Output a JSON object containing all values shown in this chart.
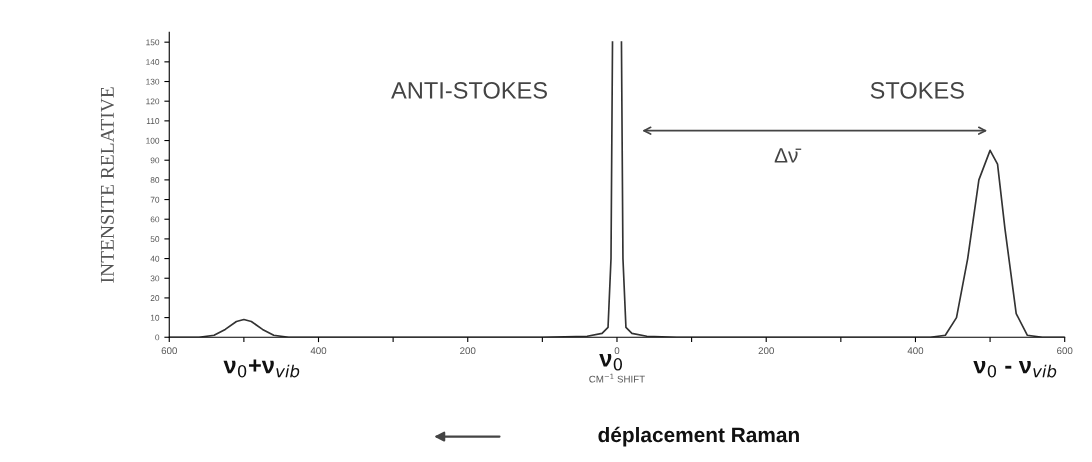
{
  "chart_data": {
    "type": "line",
    "xlabel": "CM$^{−1}$ SHIFT",
    "ylabel": "INTENSITE RELATIVE",
    "x": [
      -600,
      -560,
      -540,
      -525,
      -510,
      -500,
      -490,
      -475,
      -460,
      -440,
      -100,
      -40,
      -20,
      -12,
      -8,
      -6,
      0,
      6,
      8,
      12,
      20,
      40,
      80,
      420,
      440,
      455,
      470,
      485,
      500,
      510,
      520,
      535,
      550,
      570,
      600
    ],
    "series": [
      {
        "color": "#333333",
        "values": [
          0,
          0,
          1,
          4,
          8,
          9,
          8,
          4,
          1,
          0,
          0,
          0.5,
          2,
          5,
          40,
          150,
          null,
          150,
          40,
          5,
          2,
          0.5,
          0,
          0,
          1,
          10,
          40,
          80,
          95,
          88,
          55,
          12,
          1,
          0,
          0
        ]
      }
    ],
    "xlim": [
      -600,
      600
    ],
    "xticks": [
      {
        "value": -600,
        "label": "600"
      },
      {
        "value": -500,
        "label": null
      },
      {
        "value": -400,
        "label": "400"
      },
      {
        "value": -300,
        "label": null
      },
      {
        "value": -200,
        "label": "200"
      },
      {
        "value": -100,
        "label": null
      },
      {
        "value": 0,
        "label": "0"
      },
      {
        "value": 100,
        "label": null
      },
      {
        "value": 200,
        "label": "200"
      },
      {
        "value": 300,
        "label": null
      },
      {
        "value": 400,
        "label": "400"
      },
      {
        "value": 500,
        "label": null
      },
      {
        "value": 600,
        "label": "600"
      }
    ],
    "ylim": [
      0,
      155
    ],
    "yticks": [
      0,
      10,
      20,
      30,
      40,
      50,
      60,
      70,
      80,
      90,
      100,
      110,
      120,
      130,
      140,
      150
    ],
    "grid": false,
    "legend": false,
    "marker": "none",
    "line_style": "solid",
    "annotations": [
      "ANTI-STOKES",
      "STOKES",
      "Δν̄",
      "ν$_{0}$+ν$_{vib}$",
      "ν$_{0}$",
      "ν$_{0}$ - ν$_{vib}$",
      "déplacement Raman"
    ]
  }
}
